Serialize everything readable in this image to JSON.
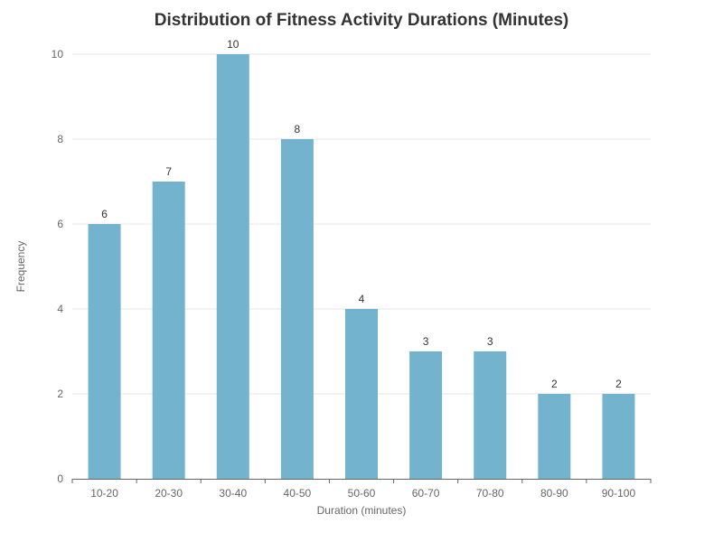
{
  "chart_data": {
    "type": "bar",
    "title": "Distribution of Fitness Activity Durations (Minutes)",
    "xlabel": "Duration (minutes)",
    "ylabel": "Frequency",
    "categories": [
      "10-20",
      "20-30",
      "30-40",
      "40-50",
      "50-60",
      "60-70",
      "70-80",
      "80-90",
      "90-100"
    ],
    "values": [
      6,
      7,
      10,
      8,
      4,
      3,
      3,
      2,
      2
    ],
    "ylim": [
      0,
      10
    ],
    "yticks": [
      0,
      2,
      4,
      6,
      8,
      10
    ],
    "grid": true,
    "bar_color": "#73b3ce",
    "data_labels": true
  }
}
